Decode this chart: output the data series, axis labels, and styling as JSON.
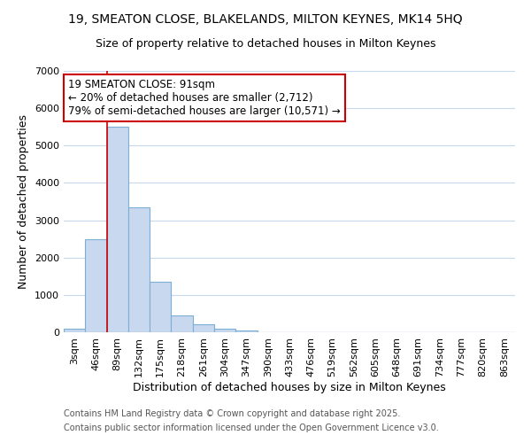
{
  "title1": "19, SMEATON CLOSE, BLAKELANDS, MILTON KEYNES, MK14 5HQ",
  "title2": "Size of property relative to detached houses in Milton Keynes",
  "xlabel": "Distribution of detached houses by size in Milton Keynes",
  "ylabel": "Number of detached properties",
  "categories": [
    "3sqm",
    "46sqm",
    "89sqm",
    "132sqm",
    "175sqm",
    "218sqm",
    "261sqm",
    "304sqm",
    "347sqm",
    "390sqm",
    "433sqm",
    "476sqm",
    "519sqm",
    "562sqm",
    "605sqm",
    "648sqm",
    "691sqm",
    "734sqm",
    "777sqm",
    "820sqm",
    "863sqm"
  ],
  "values": [
    100,
    2500,
    5500,
    3350,
    1350,
    440,
    220,
    100,
    50,
    0,
    0,
    0,
    0,
    0,
    0,
    0,
    0,
    0,
    0,
    0,
    0
  ],
  "bar_color": "#c8d8ee",
  "bar_edge_color": "#7bafd4",
  "property_line_color": "#cc0000",
  "property_line_bin": 2,
  "ylim": [
    0,
    7000
  ],
  "yticks": [
    0,
    1000,
    2000,
    3000,
    4000,
    5000,
    6000,
    7000
  ],
  "annotation_title": "19 SMEATON CLOSE: 91sqm",
  "annotation_line1": "← 20% of detached houses are smaller (2,712)",
  "annotation_line2": "79% of semi-detached houses are larger (10,571) →",
  "annotation_box_color": "#ffffff",
  "annotation_box_edge": "#cc0000",
  "footnote1": "Contains HM Land Registry data © Crown copyright and database right 2025.",
  "footnote2": "Contains public sector information licensed under the Open Government Licence v3.0.",
  "bg_color": "#ffffff",
  "grid_color": "#c8d8ee",
  "title1_fontsize": 10,
  "title2_fontsize": 9,
  "axis_label_fontsize": 9,
  "tick_fontsize": 8,
  "annotation_fontsize": 8.5,
  "footnote_fontsize": 7
}
